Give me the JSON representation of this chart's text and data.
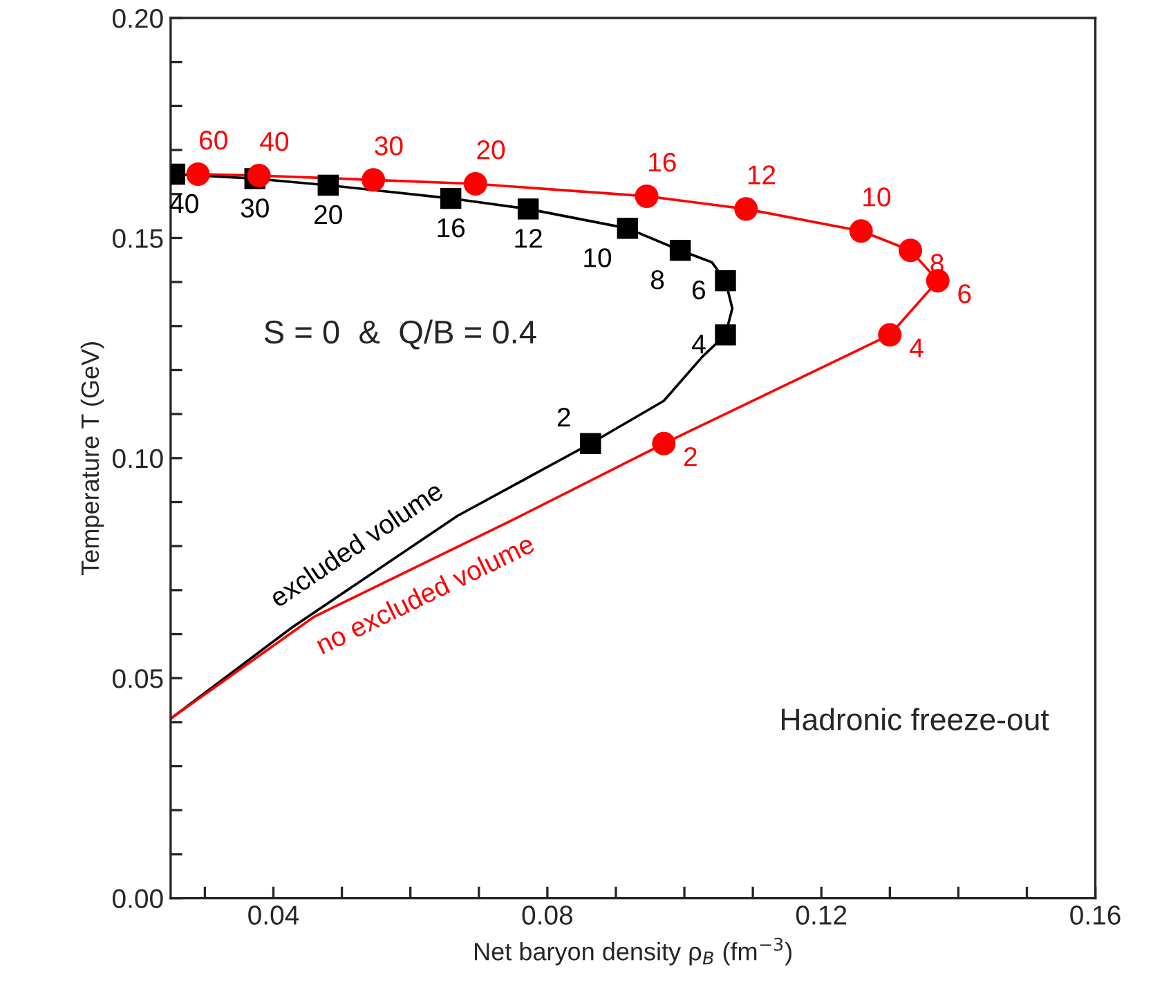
{
  "chart_data": {
    "type": "line",
    "xlabel": "Net baryon density ρ$_{B}$ (fm$^{−3}$)",
    "ylabel": "Temperature T (GeV)",
    "xlim": [
      0.025,
      0.16
    ],
    "ylim": [
      0,
      0.2
    ],
    "xticks": [
      {
        "value": 0.03,
        "label": null
      },
      0.04,
      {
        "value": 0.05,
        "label": null
      },
      {
        "value": 0.06,
        "label": null
      },
      {
        "value": 0.07,
        "label": null
      },
      0.08,
      {
        "value": 0.09,
        "label": null
      },
      {
        "value": 0.1,
        "label": null
      },
      {
        "value": 0.11,
        "label": null
      },
      0.12,
      {
        "value": 0.13,
        "label": null
      },
      {
        "value": 0.14,
        "label": null
      },
      {
        "value": 0.15,
        "label": null
      },
      0.16
    ],
    "yticks": [
      "0.00",
      {
        "value": 0.01,
        "label": null
      },
      {
        "value": 0.02,
        "label": null
      },
      {
        "value": 0.03,
        "label": null
      },
      {
        "value": 0.04,
        "label": null
      },
      {
        "value": 0.05,
        "label": "0.05"
      },
      {
        "value": 0.06,
        "label": null
      },
      {
        "value": 0.07,
        "label": null
      },
      {
        "value": 0.08,
        "label": null
      },
      {
        "value": 0.09,
        "label": null
      },
      {
        "value": 0.1,
        "label": "0.10"
      },
      {
        "value": 0.11,
        "label": null
      },
      {
        "value": 0.12,
        "label": null
      },
      {
        "value": 0.13,
        "label": null
      },
      {
        "value": 0.14,
        "label": null
      },
      {
        "value": 0.15,
        "label": "0.15"
      },
      {
        "value": 0.16,
        "label": null
      },
      {
        "value": 0.17,
        "label": null
      },
      {
        "value": 0.18,
        "label": null
      },
      {
        "value": 0.19,
        "label": null
      },
      {
        "value": 0.2,
        "label": "0.20"
      }
    ],
    "grid": false,
    "legend": false,
    "series": [
      {
        "name": "excluded volume",
        "color": "#000000",
        "marker": "none",
        "x": [
          0.025,
          0.0427,
          0.0669,
          0.0863,
          0.097,
          0.1026,
          0.106,
          0.107,
          0.106,
          0.104,
          0.0994,
          0.0917,
          0.0772,
          0.0659,
          0.048,
          0.0373,
          0.0256
        ],
        "values": [
          0.0408,
          0.0615,
          0.0869,
          0.1033,
          0.113,
          0.123,
          0.128,
          0.134,
          0.1403,
          0.1445,
          0.1472,
          0.1522,
          0.1566,
          0.159,
          0.162,
          0.1635,
          0.1645
        ]
      },
      {
        "name": "no excluded volume",
        "color": "#ff0000",
        "marker": "none",
        "x": [
          0.025,
          0.046,
          0.0746,
          0.097,
          0.13,
          0.137,
          0.133,
          0.1258,
          0.109,
          0.0945,
          0.0695,
          0.0546,
          0.0379,
          0.029
        ],
        "values": [
          0.0408,
          0.064,
          0.0857,
          0.1033,
          0.128,
          0.1403,
          0.1472,
          0.1516,
          0.1566,
          0.1595,
          0.1623,
          0.1632,
          0.1642,
          0.1645
        ]
      },
      {
        "type": "scatter",
        "color": "#000000",
        "marker": "square",
        "x": [
          0.0256,
          0.0373,
          0.048,
          0.0659,
          0.0772,
          0.0917,
          0.0994,
          0.106,
          0.106,
          0.0863
        ],
        "values": [
          0.1645,
          0.1635,
          0.162,
          0.159,
          0.1566,
          0.1522,
          0.1472,
          0.1403,
          0.128,
          0.1033
        ]
      },
      {
        "type": "scatter",
        "color": "#ff0000",
        "marker": "circle",
        "x": [
          0.029,
          0.0379,
          0.0546,
          0.0695,
          0.0945,
          0.109,
          0.1258,
          0.133,
          0.137,
          0.13,
          0.097
        ],
        "values": [
          0.1645,
          0.1642,
          0.1632,
          0.1623,
          0.1595,
          0.1566,
          0.1516,
          0.1472,
          0.1403,
          0.128,
          0.1033
        ]
      }
    ],
    "annotations": [
      "S = 0  &  Q/B = 0.4",
      "Hadronic freeze-out",
      {
        "text": "40",
        "x": 0.0256,
        "y": 0.1645
      },
      {
        "text": "30",
        "x": 0.0373,
        "y": 0.1635
      },
      {
        "text": "20",
        "x": 0.048,
        "y": 0.162
      },
      {
        "text": "16",
        "x": 0.0659,
        "y": 0.159
      },
      {
        "text": "12",
        "x": 0.0772,
        "y": 0.1566
      },
      {
        "text": "10",
        "x": 0.0917,
        "y": 0.1522
      },
      {
        "text": "8",
        "x": 0.0994,
        "y": 0.1472
      },
      {
        "text": "6",
        "x": 0.106,
        "y": 0.1403
      },
      {
        "text": "4",
        "x": 0.106,
        "y": 0.128
      },
      {
        "text": "2",
        "x": 0.0863,
        "y": 0.1033
      },
      {
        "text": "60",
        "x": 0.029,
        "y": 0.1645
      },
      {
        "text": "40",
        "x": 0.0379,
        "y": 0.1642
      },
      {
        "text": "30",
        "x": 0.0546,
        "y": 0.1632
      },
      {
        "text": "20",
        "x": 0.0695,
        "y": 0.1623
      },
      {
        "text": "16",
        "x": 0.0945,
        "y": 0.1595
      },
      {
        "text": "12",
        "x": 0.109,
        "y": 0.1566
      },
      {
        "text": "10",
        "x": 0.1258,
        "y": 0.1516
      },
      {
        "text": "8",
        "x": 0.133,
        "y": 0.1472
      },
      {
        "text": "6",
        "x": 0.137,
        "y": 0.1403
      },
      {
        "text": "4",
        "x": 0.13,
        "y": 0.128
      },
      {
        "text": "2",
        "x": 0.097,
        "y": 0.1033
      }
    ]
  }
}
